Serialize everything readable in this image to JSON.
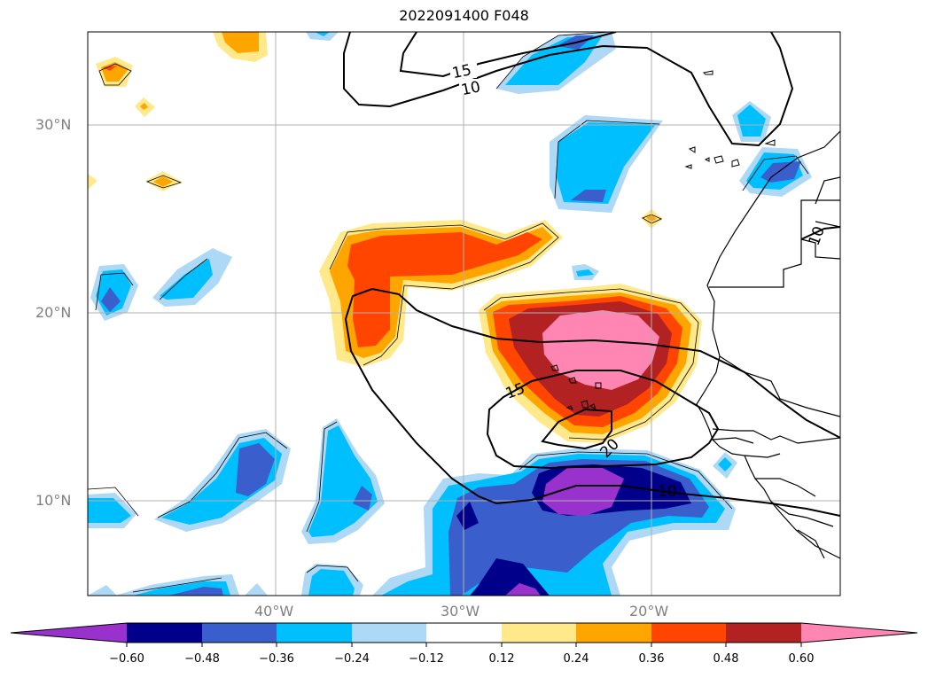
{
  "title": "2022091400 F048",
  "latitude_labels": [
    "30°N",
    "20°N",
    "10°N"
  ],
  "longitude_labels": [
    "40°W",
    "30°W",
    "20°W"
  ],
  "contour_labels": [
    "15",
    "10",
    "15",
    "20",
    "10",
    "10"
  ],
  "colorbar": {
    "tick_labels": [
      "−0.60",
      "−0.48",
      "−0.36",
      "−0.24",
      "−0.12",
      "0.12",
      "0.24",
      "0.36",
      "0.48",
      "0.60"
    ],
    "colors": [
      "#9932CC",
      "#00008B",
      "#3A5FCD",
      "#00BFFF",
      "#ADD8F6",
      "#FFFFFF",
      "#FFE98A",
      "#FFA500",
      "#FF4500",
      "#B22222",
      "#FF85B3"
    ]
  },
  "colors": {
    "grid": "#b0b0b0",
    "contour": "#000000",
    "tick_text": "#808080"
  }
}
